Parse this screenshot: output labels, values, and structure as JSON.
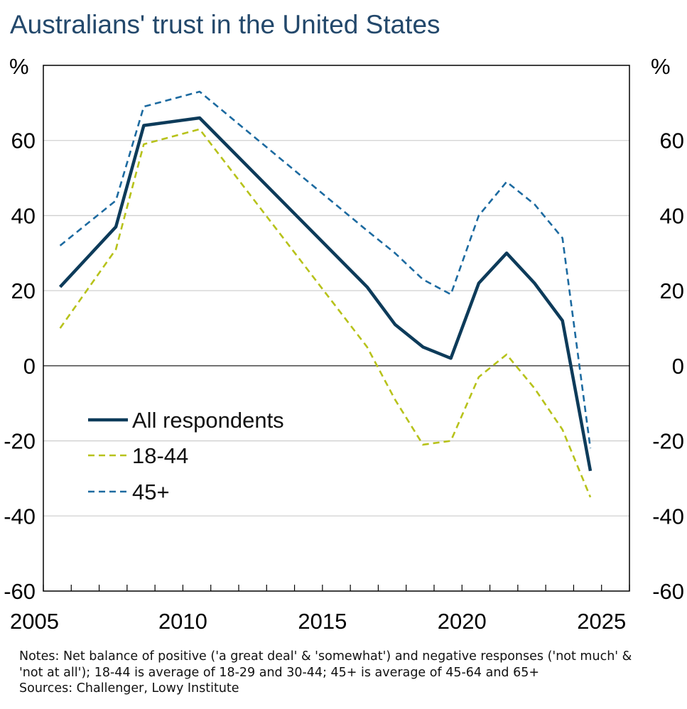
{
  "title": "Australians' trust in the United States",
  "notes": {
    "line1": "Notes: Net balance of positive ('a great deal' & 'somewhat') and negative responses ('not much' &",
    "line2": "'not at all'); 18-44 is average of 18-29 and 30-44; 45+ is average of 45-64 and 65+",
    "sources": "Sources: Challenger, Lowy Institute"
  },
  "colors": {
    "all": "#0d3b5a",
    "young": "#b7c21a",
    "old": "#1c6aa0",
    "grid": "#d0d0d0",
    "axis": "#000000",
    "title": "#23486b"
  },
  "chart_data": {
    "type": "line",
    "title": "Australians' trust in the United States",
    "ylabel_left": "%",
    "ylabel_right": "%",
    "xlim": [
      2005,
      2026
    ],
    "ylim": [
      -60,
      80
    ],
    "x_ticks": [
      2005,
      2010,
      2015,
      2020,
      2025
    ],
    "y_ticks": [
      -60,
      -40,
      -20,
      0,
      20,
      40,
      60
    ],
    "grid": true,
    "legend_position": "bottom-left",
    "series": [
      {
        "name": "All respondents",
        "style": "solid",
        "color": "#0d3b5a",
        "x": [
          2005.6,
          2007.6,
          2008.6,
          2010.6,
          2016.6,
          2017.6,
          2018.6,
          2019.6,
          2020.6,
          2021.6,
          2022.6,
          2023.6,
          2024.6
        ],
        "values": [
          21,
          37,
          64,
          66,
          21,
          11,
          5,
          2,
          22,
          30,
          22,
          12,
          -28
        ]
      },
      {
        "name": "18-44",
        "style": "dashed",
        "color": "#b7c21a",
        "x": [
          2005.6,
          2007.6,
          2008.6,
          2010.6,
          2016.6,
          2017.6,
          2018.6,
          2019.6,
          2020.6,
          2021.6,
          2022.6,
          2023.6,
          2024.6
        ],
        "values": [
          10,
          31,
          59,
          63,
          5,
          -9,
          -21,
          -20,
          -3,
          3,
          -6,
          -17,
          -35
        ]
      },
      {
        "name": "45+",
        "style": "dashed",
        "color": "#1c6aa0",
        "x": [
          2005.6,
          2007.6,
          2008.6,
          2010.6,
          2016.6,
          2017.6,
          2018.6,
          2019.6,
          2020.6,
          2021.6,
          2022.6,
          2023.6,
          2024.6
        ],
        "values": [
          32,
          44,
          69,
          73,
          36,
          30,
          23,
          19,
          40,
          49,
          43,
          34,
          -22
        ]
      }
    ]
  }
}
